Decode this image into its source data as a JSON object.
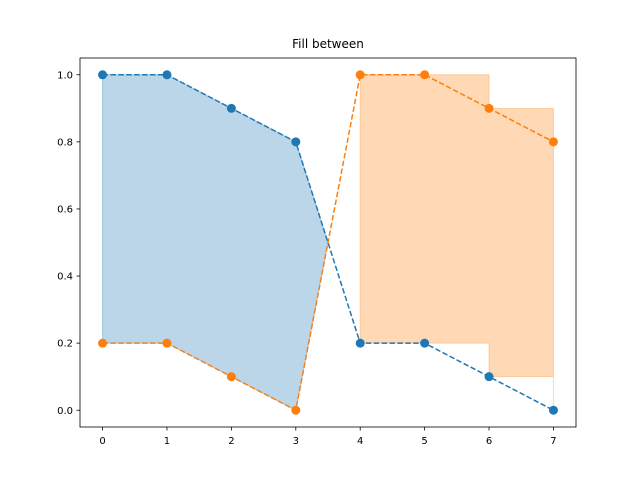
{
  "chart_data": {
    "type": "line",
    "title": "Fill between",
    "xlabel": "",
    "ylabel": "",
    "xlim": [
      -0.35,
      7.35
    ],
    "ylim": [
      -0.05,
      1.05
    ],
    "x_ticks": [
      0,
      1,
      2,
      3,
      4,
      5,
      6,
      7
    ],
    "y_ticks": [
      0.0,
      0.2,
      0.4,
      0.6,
      0.8,
      1.0
    ],
    "y_tick_labels": [
      "0.0",
      "0.2",
      "0.4",
      "0.6",
      "0.8",
      "1.0"
    ],
    "grid": false,
    "x": [
      0,
      1,
      2,
      3,
      4,
      5,
      6,
      7
    ],
    "series": [
      {
        "values": [
          1.0,
          1.0,
          0.9,
          0.8,
          0.2,
          0.2,
          0.1,
          0.0
        ],
        "color": "#1f77b4",
        "linestyle": "dashed",
        "marker": "circle"
      },
      {
        "values": [
          0.2,
          0.2,
          0.1,
          0.0,
          1.0,
          1.0,
          0.9,
          0.8
        ],
        "color": "#ff7f0e",
        "linestyle": "dashed",
        "marker": "circle"
      }
    ],
    "fills": [
      {
        "where": "series1 >= series2",
        "step": "none",
        "color": "#1f77b4",
        "alpha": 0.3
      },
      {
        "where": "series2 > series1",
        "step": "post",
        "color": "#ff7f0e",
        "alpha": 0.3
      }
    ]
  }
}
